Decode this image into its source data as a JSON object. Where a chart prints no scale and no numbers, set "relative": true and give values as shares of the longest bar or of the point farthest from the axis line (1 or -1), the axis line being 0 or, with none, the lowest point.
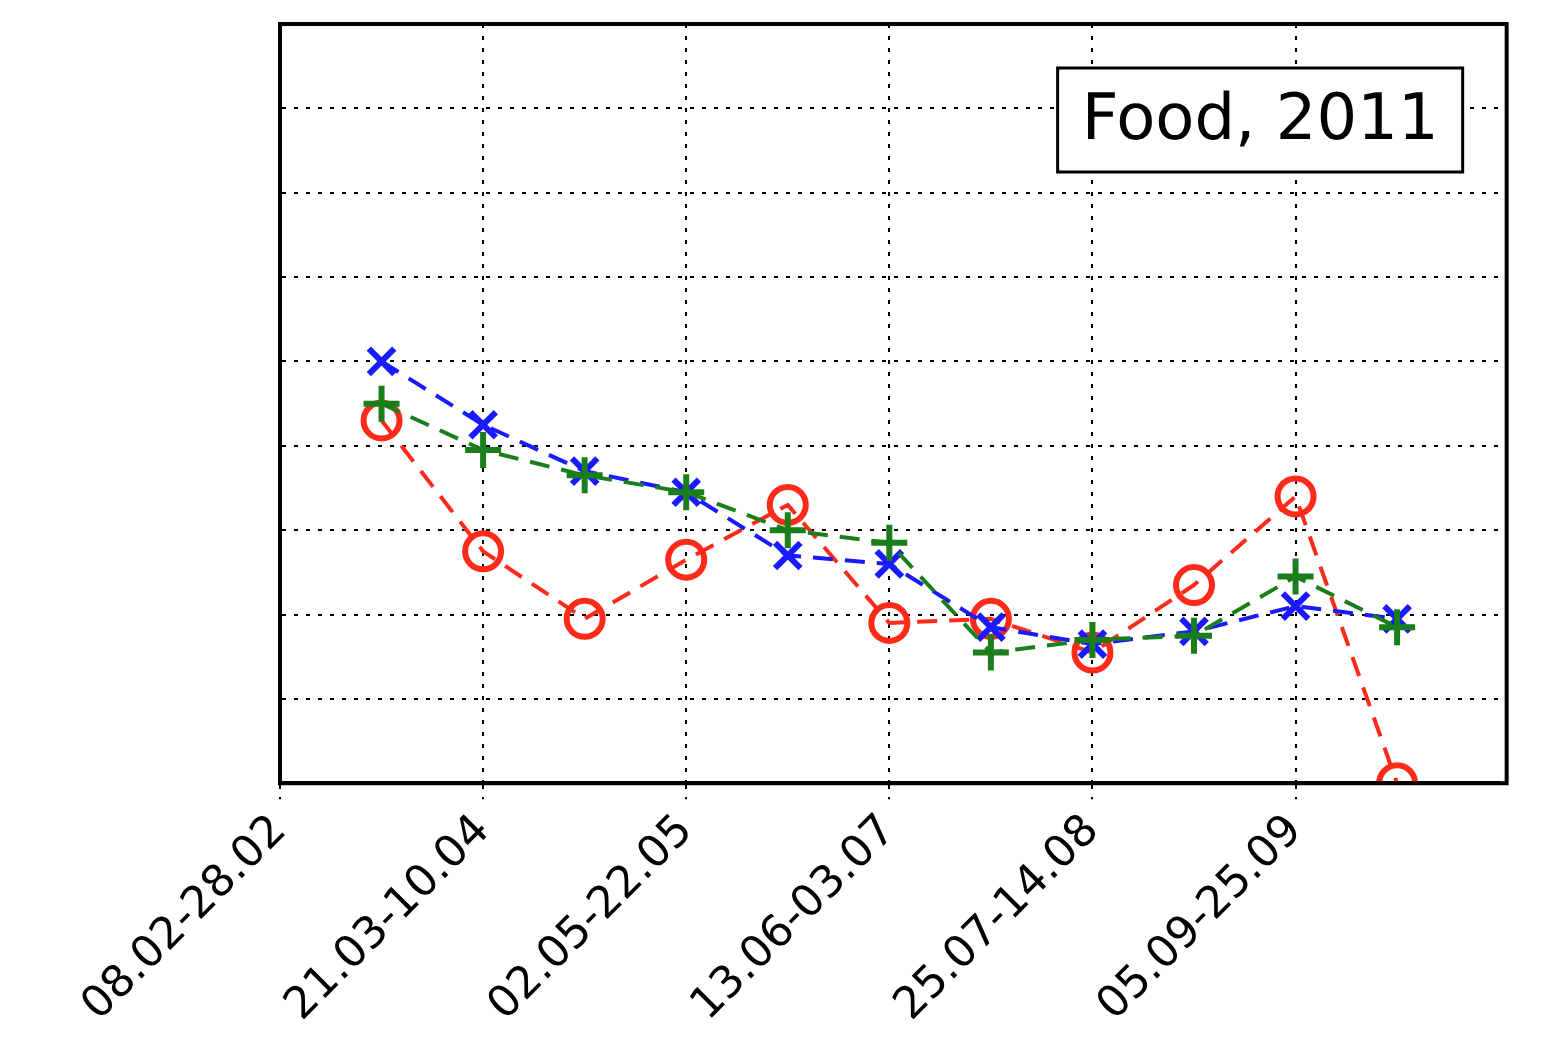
{
  "chart_data": {
    "type": "line",
    "relative": true,
    "annotations": [
      "Food, 2011"
    ],
    "grid": true,
    "line_style": "dashed",
    "categories": [
      "08.02-28.02",
      null,
      "21.03-10.04",
      null,
      "02.05-22.05",
      null,
      "13.06-03.07",
      null,
      "25.07-14.08",
      null,
      "05.09-25.09",
      null,
      null
    ],
    "series": [
      {
        "color": "#ff2a1a",
        "marker": "circle",
        "values": [
          null,
          0.86,
          0.55,
          0.39,
          0.53,
          0.66,
          0.38,
          0.39,
          0.31,
          0.47,
          0.68,
          0,
          null
        ]
      },
      {
        "color": "#1a1aff",
        "marker": "cross",
        "values": [
          null,
          1,
          0.85,
          0.74,
          0.69,
          0.54,
          0.52,
          0.37,
          0.33,
          0.36,
          0.42,
          0.39,
          null
        ]
      },
      {
        "color": "#1a7f1a",
        "marker": "plus",
        "values": [
          null,
          0.9,
          0.79,
          0.73,
          0.69,
          0.6,
          0.57,
          0.31,
          0.34,
          0.35,
          0.49,
          0.37,
          null
        ]
      }
    ]
  }
}
